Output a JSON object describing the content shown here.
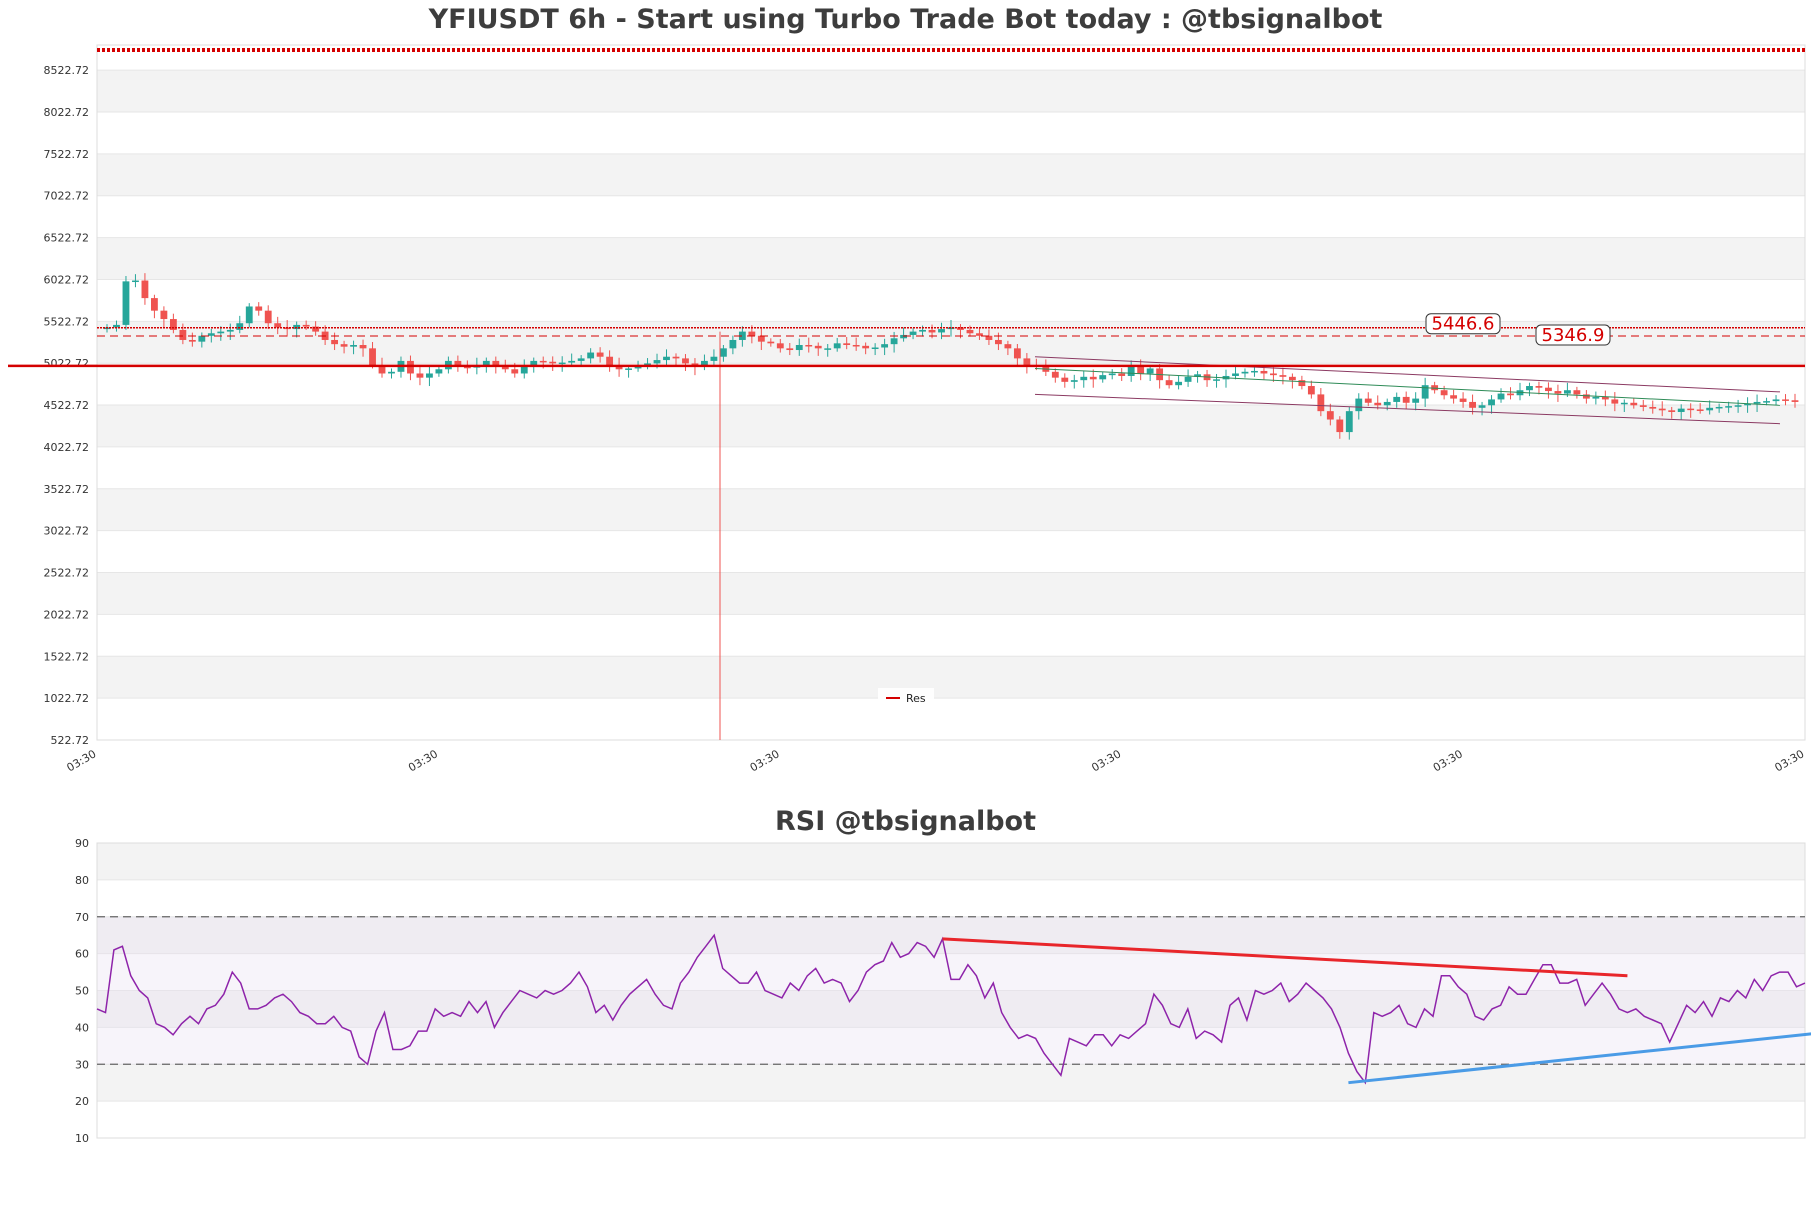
{
  "colors": {
    "up": "#26a69a",
    "down": "#ef5350",
    "resistance": "#d40000",
    "rsi_line": "#8e24aa",
    "rsi_down_trend": "#e8262b",
    "rsi_up_trend": "#4a9be6",
    "channel": "#8b3a62",
    "mid_line": "#2e8b57",
    "band_fill": "#f3f3f3"
  },
  "main_title": "YFIUSDT 6h - Start using Turbo Trade Bot today : @tbsignalbot",
  "rsi_title": "RSI @tbsignalbot",
  "chart_data": [
    {
      "type": "candlestick",
      "title": "YFIUSDT 6h - Start using Turbo Trade Bot today : @tbsignalbot",
      "ylim": [
        522.72,
        8822.72
      ],
      "y_ticks": [
        "522.72",
        "1022.72",
        "1522.72",
        "2022.72",
        "2522.72",
        "3022.72",
        "3522.72",
        "4022.72",
        "4522.72",
        "5022.72",
        "5522.72",
        "6022.72",
        "6522.72",
        "7022.72",
        "7522.72",
        "8022.72",
        "8522.72"
      ],
      "x_tick_labels": [
        "03:30",
        "03:30",
        "03:30",
        "03:30",
        "03:30",
        "03:30"
      ],
      "legend": {
        "position": "bottom-center",
        "entries": [
          "Res"
        ]
      },
      "grid": true,
      "resistance_main": 4990,
      "resistance_levels": [
        {
          "value": 5446.6,
          "label": "5446.6"
        },
        {
          "value": 5346.9,
          "label": "5346.9"
        }
      ],
      "top_band": 8822.72,
      "wick_low_outlier": 522.72,
      "candles_close": [
        5450,
        5480,
        6000,
        6010,
        5800,
        5650,
        5550,
        5420,
        5300,
        5280,
        5350,
        5380,
        5400,
        5420,
        5500,
        5700,
        5650,
        5500,
        5450,
        5430,
        5480,
        5460,
        5400,
        5300,
        5250,
        5220,
        5240,
        5200,
        5000,
        4900,
        4920,
        5050,
        4900,
        4850,
        4900,
        4950,
        5050,
        4980,
        4970,
        5000,
        5050,
        5000,
        4950,
        4900,
        4980,
        5050,
        5040,
        5020,
        5030,
        5050,
        5080,
        5150,
        5100,
        5000,
        4950,
        4960,
        5000,
        5020,
        5060,
        5100,
        5080,
        5020,
        4980,
        5050,
        5100,
        5200,
        5300,
        5400,
        5350,
        5280,
        5260,
        5200,
        5180,
        5240,
        5230,
        5200,
        5200,
        5260,
        5240,
        5230,
        5200,
        5210,
        5250,
        5320,
        5360,
        5400,
        5420,
        5390,
        5430,
        5450,
        5420,
        5380,
        5350,
        5300,
        5250,
        5200,
        5080,
        5000,
        4980,
        4920,
        4850,
        4800,
        4820,
        4860,
        4830,
        4880,
        4900,
        4870,
        4980,
        4900,
        4960,
        4820,
        4760,
        4800,
        4860,
        4890,
        4820,
        4830,
        4870,
        4900,
        4920,
        4930,
        4900,
        4880,
        4860,
        4820,
        4750,
        4650,
        4450,
        4350,
        4200,
        4450,
        4600,
        4550,
        4520,
        4560,
        4620,
        4550,
        4600,
        4760,
        4700,
        4640,
        4600,
        4560,
        4490,
        4520,
        4590,
        4660,
        4640,
        4700,
        4750,
        4730,
        4690,
        4660,
        4700,
        4650,
        4600,
        4620,
        4590,
        4540,
        4550,
        4520,
        4500,
        4480,
        4460,
        4440,
        4480,
        4470,
        4460,
        4490,
        4500,
        4510,
        4520,
        4540,
        4560,
        4570,
        4590,
        4580,
        4560
      ],
      "channel_upper": [
        5100,
        4680
      ],
      "channel_lower": [
        4650,
        4300
      ],
      "channel_mid": [
        4960,
        4520
      ]
    },
    {
      "type": "line",
      "title": "RSI @tbsignalbot",
      "ylim": [
        10,
        90
      ],
      "y_ticks": [
        10,
        20,
        30,
        40,
        50,
        60,
        70,
        80,
        90
      ],
      "overbought": 70,
      "oversold": 30,
      "band": [
        40,
        60
      ],
      "values": [
        45,
        44,
        61,
        62,
        54,
        50,
        48,
        41,
        40,
        38,
        41,
        43,
        41,
        45,
        46,
        49,
        55,
        52,
        45,
        45,
        46,
        48,
        49,
        47,
        44,
        43,
        41,
        41,
        43,
        40,
        39,
        32,
        30,
        39,
        44,
        34,
        34,
        35,
        39,
        39,
        45,
        43,
        44,
        43,
        47,
        44,
        47,
        40,
        44,
        47,
        50,
        49,
        48,
        50,
        49,
        50,
        52,
        55,
        51,
        44,
        46,
        42,
        46,
        49,
        51,
        53,
        49,
        46,
        45,
        52,
        55,
        59,
        62,
        65,
        56,
        54,
        52,
        52,
        55,
        50,
        49,
        48,
        52,
        50,
        54,
        56,
        52,
        53,
        52,
        47,
        50,
        55,
        57,
        58,
        63,
        59,
        60,
        63,
        62,
        59,
        64,
        53,
        53,
        57,
        54,
        48,
        52,
        44,
        40,
        37,
        38,
        37,
        33,
        30,
        27,
        37,
        36,
        35,
        38,
        38,
        35,
        38,
        37,
        39,
        41,
        49,
        46,
        41,
        40,
        45,
        37,
        39,
        38,
        36,
        46,
        48,
        42,
        50,
        49,
        50,
        52,
        47,
        49,
        52,
        50,
        48,
        45,
        40,
        33,
        28,
        25,
        44,
        43,
        44,
        46,
        41,
        40,
        45,
        43,
        54,
        54,
        51,
        49,
        43,
        42,
        45,
        46,
        51,
        49,
        49,
        53,
        57,
        57,
        52,
        52,
        53,
        46,
        49,
        52,
        49,
        45,
        44,
        45,
        43,
        42,
        41,
        36,
        41,
        46,
        44,
        47,
        43,
        48,
        47,
        50,
        48,
        53,
        50,
        54,
        55,
        55,
        51,
        52
      ],
      "trend_down": [
        [
          100,
          64
        ],
        [
          181,
          54
        ]
      ],
      "trend_up": [
        [
          148,
          25
        ],
        [
          210,
          40
        ]
      ]
    }
  ]
}
